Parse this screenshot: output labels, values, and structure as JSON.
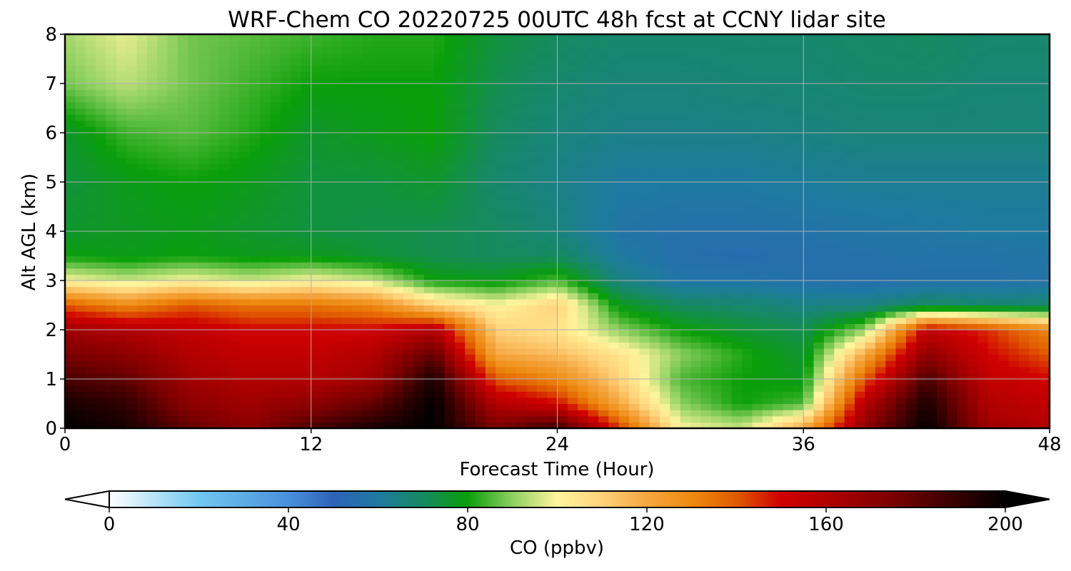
{
  "chart_data": {
    "type": "heatmap",
    "title": "WRF-Chem CO  20220725 00UTC 48h fcst at CCNY lidar site",
    "xlabel": "Forecast Time (Hour)",
    "ylabel": "Alt AGL (km)",
    "xlim": [
      0,
      48
    ],
    "ylim": [
      0,
      8
    ],
    "xticks": [
      "0",
      "12",
      "24",
      "36",
      "48"
    ],
    "yticks": [
      "0",
      "1",
      "2",
      "3",
      "4",
      "5",
      "6",
      "7",
      "8"
    ],
    "grid": true,
    "x": [
      0,
      3,
      6,
      9,
      12,
      15,
      18,
      21,
      24,
      27,
      30,
      33,
      36,
      39,
      42,
      45,
      48
    ],
    "y": [
      0,
      0.5,
      1,
      1.5,
      2,
      2.5,
      3,
      3.5,
      4,
      5,
      6,
      7,
      8
    ],
    "z": [
      [
        200,
        195,
        180,
        170,
        185,
        195,
        200,
        175,
        190,
        145,
        100,
        95,
        120,
        170,
        200,
        165,
        160
      ],
      [
        195,
        190,
        170,
        165,
        170,
        180,
        200,
        160,
        150,
        120,
        90,
        80,
        85,
        160,
        195,
        160,
        155
      ],
      [
        185,
        180,
        165,
        160,
        160,
        165,
        195,
        140,
        130,
        110,
        85,
        80,
        78,
        140,
        185,
        155,
        150
      ],
      [
        175,
        170,
        160,
        155,
        155,
        160,
        180,
        120,
        115,
        105,
        90,
        82,
        75,
        120,
        170,
        150,
        140
      ],
      [
        165,
        160,
        155,
        150,
        150,
        150,
        160,
        110,
        105,
        90,
        80,
        75,
        72,
        90,
        155,
        145,
        130
      ],
      [
        140,
        130,
        140,
        135,
        135,
        130,
        110,
        100,
        110,
        78,
        70,
        68,
        65,
        65,
        70,
        68,
        68
      ],
      [
        100,
        95,
        100,
        95,
        100,
        95,
        80,
        78,
        85,
        65,
        58,
        58,
        56,
        55,
        56,
        56,
        57
      ],
      [
        80,
        78,
        80,
        78,
        78,
        75,
        72,
        70,
        70,
        60,
        55,
        54,
        55,
        56,
        57,
        57,
        58
      ],
      [
        76,
        77,
        78,
        76,
        74,
        73,
        72,
        70,
        66,
        58,
        56,
        56,
        57,
        58,
        59,
        60,
        60
      ],
      [
        74,
        78,
        80,
        78,
        74,
        74,
        76,
        68,
        64,
        60,
        60,
        60,
        61,
        62,
        62,
        62,
        62
      ],
      [
        76,
        84,
        86,
        82,
        76,
        78,
        80,
        70,
        66,
        64,
        64,
        64,
        65,
        66,
        66,
        66,
        66
      ],
      [
        88,
        94,
        88,
        84,
        80,
        80,
        80,
        72,
        68,
        66,
        66,
        67,
        67,
        68,
        68,
        67,
        67
      ],
      [
        92,
        98,
        88,
        86,
        84,
        82,
        82,
        74,
        70,
        68,
        68,
        68,
        68,
        69,
        70,
        68,
        68
      ]
    ],
    "colorbar": {
      "label": "CO  (ppbv)",
      "min": 0,
      "max": 200,
      "ticks": [
        "0",
        "40",
        "80",
        "120",
        "160",
        "200"
      ],
      "extend": "both",
      "colors": [
        [
          0,
          "#ffffff"
        ],
        [
          20,
          "#70c8f0"
        ],
        [
          40,
          "#4a90dd"
        ],
        [
          50,
          "#2e62b8"
        ],
        [
          60,
          "#1e7aa0"
        ],
        [
          70,
          "#168a60"
        ],
        [
          80,
          "#0a9e0a"
        ],
        [
          90,
          "#8ed060"
        ],
        [
          100,
          "#fff59d"
        ],
        [
          110,
          "#ffd27a"
        ],
        [
          120,
          "#f5a640"
        ],
        [
          130,
          "#ee8a10"
        ],
        [
          140,
          "#e05a00"
        ],
        [
          150,
          "#d00000"
        ],
        [
          160,
          "#b20000"
        ],
        [
          175,
          "#7a0000"
        ],
        [
          190,
          "#300000"
        ],
        [
          200,
          "#000000"
        ]
      ]
    }
  }
}
